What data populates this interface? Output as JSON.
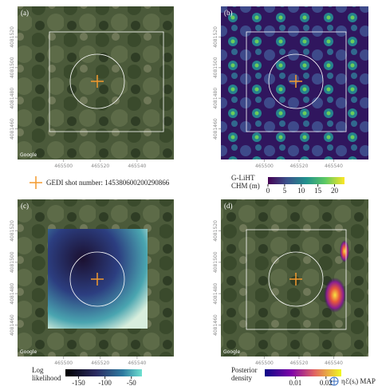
{
  "panels": [
    {
      "label": "(a)"
    },
    {
      "label": "(b)"
    },
    {
      "label": "(c)"
    },
    {
      "label": "(d)"
    }
  ],
  "axes": {
    "xlim": [
      465475,
      465560
    ],
    "xticks": [
      465500,
      465520,
      465540
    ],
    "ylim": [
      4081440,
      4081540
    ],
    "yticks": [
      4081460,
      4081480,
      4081500,
      4081520
    ]
  },
  "watermark": "Google",
  "gedi_legend": "GEDI shot number: 145380600200290866",
  "colorbars": [
    {
      "title_lines": [
        "G-LiHT",
        "CHM (m)"
      ],
      "lim": [
        0,
        23
      ],
      "ticks": [
        0,
        5,
        10,
        15,
        20
      ]
    },
    {
      "title_lines": [
        "Log",
        "likelihood"
      ],
      "lim": [
        -175,
        -30
      ],
      "ticks": [
        -150,
        -100,
        -50
      ]
    },
    {
      "title_lines": [
        "Posterior",
        "density"
      ],
      "lim": [
        0,
        0.025
      ],
      "ticks": [
        0.01,
        0.02
      ]
    }
  ],
  "map_legend": "ηℰ(sᵢ) MAP"
}
